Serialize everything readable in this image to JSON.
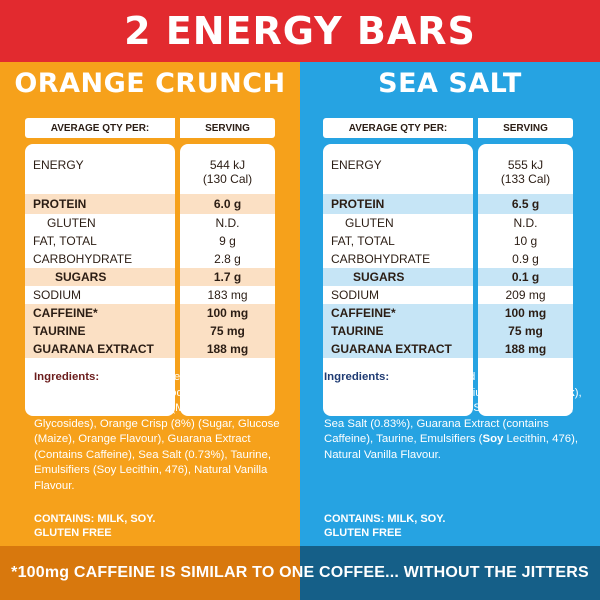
{
  "title": "2 ENERGY BARS",
  "table_header": {
    "qty": "AVERAGE QTY PER:",
    "serving": "SERVING"
  },
  "products": [
    {
      "name": "ORANGE CRUNCH",
      "color": "#f6a11b",
      "nutrition": [
        {
          "label": "ENERGY",
          "value": "544 kJ",
          "value2": "(130 Cal)",
          "bold": false,
          "highlight": false,
          "indent": 0
        },
        {
          "label": "PROTEIN",
          "value": "6.0 g",
          "bold": true,
          "highlight": true,
          "indent": 0
        },
        {
          "label": "GLUTEN",
          "value": "N.D.",
          "bold": false,
          "highlight": false,
          "indent": 1
        },
        {
          "label": "FAT, TOTAL",
          "value": "9 g",
          "bold": false,
          "highlight": false,
          "indent": 0
        },
        {
          "label": "CARBOHYDRATE",
          "value": "2.8 g",
          "bold": false,
          "highlight": false,
          "indent": 0
        },
        {
          "label": "SUGARS",
          "value": "1.7 g",
          "bold": true,
          "highlight": true,
          "indent": 2
        },
        {
          "label": "SODIUM",
          "value": "183 mg",
          "bold": false,
          "highlight": false,
          "indent": 0
        },
        {
          "label": "CAFFEINE*",
          "value": "100 mg",
          "bold": true,
          "highlight": true,
          "indent": 0
        },
        {
          "label": "TAURINE",
          "value": "75 mg",
          "bold": true,
          "highlight": true,
          "indent": 0
        },
        {
          "label": "GUARANA EXTRACT",
          "value": "188 mg",
          "bold": true,
          "highlight": true,
          "indent": 0
        }
      ],
      "ingredients_label": "Ingredients:",
      "ingredients_text": " Protein Enriched Dark Chocolate (Cocoa Solids Min 58%), Sodium Caseinate (Milk), Natural Sweeteners (Maltitol, Steviol Glycosides), Orange Crisp (8%) (Sugar, Glucose (Maize), Orange Flavour), Guarana Extract (Contains Caffeine), Sea Salt (0.73%), Taurine, Emulsifiers (Soy Lecithin, 476), Natural Vanilla Flavour.",
      "contains": "CONTAINS: MILK, SOY.",
      "gluten_free": "GLUTEN FREE"
    },
    {
      "name": "SEA SALT",
      "color": "#26a3e2",
      "nutrition": [
        {
          "label": "ENERGY",
          "value": "555 kJ",
          "value2": "(133 Cal)",
          "bold": false,
          "highlight": false,
          "indent": 0
        },
        {
          "label": "PROTEIN",
          "value": "6.5 g",
          "bold": true,
          "highlight": true,
          "indent": 0
        },
        {
          "label": "GLUTEN",
          "value": "N.D.",
          "bold": false,
          "highlight": false,
          "indent": 1
        },
        {
          "label": "FAT, TOTAL",
          "value": "10 g",
          "bold": false,
          "highlight": false,
          "indent": 0
        },
        {
          "label": "CARBOHYDRATE",
          "value": "0.9 g",
          "bold": false,
          "highlight": false,
          "indent": 0
        },
        {
          "label": "SUGARS",
          "value": "0.1 g",
          "bold": true,
          "highlight": true,
          "indent": 2
        },
        {
          "label": "SODIUM",
          "value": "209 mg",
          "bold": false,
          "highlight": false,
          "indent": 0
        },
        {
          "label": "CAFFEINE*",
          "value": "100 mg",
          "bold": true,
          "highlight": true,
          "indent": 0
        },
        {
          "label": "TAURINE",
          "value": "75 mg",
          "bold": true,
          "highlight": true,
          "indent": 0
        },
        {
          "label": "GUARANA EXTRACT",
          "value": "188 mg",
          "bold": true,
          "highlight": true,
          "indent": 0
        }
      ],
      "ingredients_label": "Ingredients:",
      "ingredients_parts": [
        {
          "t": " Protein enriched Dark Chocolate (Cocoa Solids min 58%), Sodium Caseinate (",
          "b": false
        },
        {
          "t": "Milk",
          "b": true
        },
        {
          "t": "), Natural Sweeteners (Maltitol, Steviol Glycosides), Sea Salt (0.83%), Guarana Extract (contains Caffeine), Taurine, Emulsifiers (",
          "b": false
        },
        {
          "t": "Soy",
          "b": true
        },
        {
          "t": " Lecithin, 476), Natural Vanilla Flavour.",
          "b": false
        }
      ],
      "contains": "CONTAINS: MILK, SOY.",
      "gluten_free": "GLUTEN FREE"
    }
  ],
  "footer": "*100mg CAFFEINE IS SIMILAR TO ONE COFFEE... WITHOUT THE JITTERS"
}
